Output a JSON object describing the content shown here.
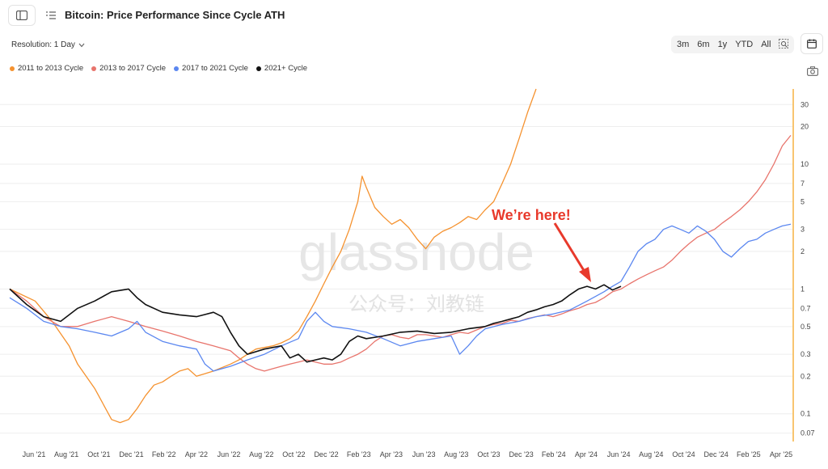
{
  "header": {
    "title": "Bitcoin: Price Performance Since Cycle ATH"
  },
  "toolbar": {
    "resolution_label": "Resolution: 1 Day",
    "ranges": [
      "3m",
      "6m",
      "1y",
      "YTD",
      "All"
    ]
  },
  "annotation": {
    "text": "We’re here!",
    "color": "#e8392b"
  },
  "watermark": {
    "logo": "glassnode",
    "subtitle": "公众号：刘教链"
  },
  "colors": {
    "cycle_2011": "#f5922f",
    "cycle_2013": "#e8746c",
    "cycle_2017": "#5b87f0",
    "cycle_2021": "#111111",
    "axis_accent": "#f5a623",
    "grid": "#eeeeee"
  },
  "chart_data": {
    "type": "line",
    "y_scale": "log",
    "ylim": [
      0.06,
      40
    ],
    "y_ticks": [
      30,
      20,
      10,
      7,
      5,
      3,
      2,
      1,
      0.7,
      0.5,
      0.3,
      0.2,
      0.1,
      0.07
    ],
    "x_ticks": [
      "Jun '21",
      "Aug '21",
      "Oct '21",
      "Dec '21",
      "Feb '22",
      "Apr '22",
      "Jun '22",
      "Aug '22",
      "Oct '22",
      "Dec '22",
      "Feb '23",
      "Apr '23",
      "Jun '23",
      "Aug '23",
      "Oct '23",
      "Dec '23",
      "Feb '24",
      "Apr '24",
      "Jun '24",
      "Aug '24",
      "Oct '24",
      "Dec '24",
      "Feb '25",
      "Apr '25"
    ],
    "legend_position": "top-left",
    "series": [
      {
        "name": "2011 to 2013 Cycle",
        "color_key": "cycle_2011",
        "points": [
          [
            0,
            1.0
          ],
          [
            3,
            0.8
          ],
          [
            5,
            0.55
          ],
          [
            7,
            0.35
          ],
          [
            8,
            0.25
          ],
          [
            9,
            0.2
          ],
          [
            10,
            0.16
          ],
          [
            11,
            0.12
          ],
          [
            12,
            0.09
          ],
          [
            13,
            0.085
          ],
          [
            14,
            0.09
          ],
          [
            15,
            0.11
          ],
          [
            16,
            0.14
          ],
          [
            17,
            0.17
          ],
          [
            18,
            0.18
          ],
          [
            19,
            0.2
          ],
          [
            20,
            0.22
          ],
          [
            21,
            0.23
          ],
          [
            22,
            0.2
          ],
          [
            24,
            0.22
          ],
          [
            26,
            0.25
          ],
          [
            27,
            0.27
          ],
          [
            28,
            0.3
          ],
          [
            29,
            0.33
          ],
          [
            30,
            0.34
          ],
          [
            31,
            0.35
          ],
          [
            32,
            0.37
          ],
          [
            33,
            0.4
          ],
          [
            34,
            0.46
          ],
          [
            35,
            0.6
          ],
          [
            36,
            0.8
          ],
          [
            37,
            1.1
          ],
          [
            38,
            1.5
          ],
          [
            39,
            2.0
          ],
          [
            40,
            3.0
          ],
          [
            41,
            5.0
          ],
          [
            41.5,
            8.0
          ],
          [
            42,
            6.5
          ],
          [
            43,
            4.5
          ],
          [
            44,
            3.8
          ],
          [
            45,
            3.3
          ],
          [
            46,
            3.6
          ],
          [
            47,
            3.1
          ],
          [
            48,
            2.5
          ],
          [
            49,
            2.1
          ],
          [
            50,
            2.6
          ],
          [
            51,
            2.9
          ],
          [
            52,
            3.1
          ],
          [
            53,
            3.4
          ],
          [
            54,
            3.8
          ],
          [
            55,
            3.6
          ],
          [
            56,
            4.3
          ],
          [
            57,
            5.0
          ],
          [
            58,
            7.0
          ],
          [
            59,
            10.0
          ],
          [
            60,
            16.0
          ],
          [
            61,
            26.0
          ],
          [
            62,
            40.0
          ]
        ]
      },
      {
        "name": "2013 to 2017 Cycle",
        "color_key": "cycle_2013",
        "points": [
          [
            0,
            1.0
          ],
          [
            2,
            0.8
          ],
          [
            4,
            0.6
          ],
          [
            6,
            0.5
          ],
          [
            8,
            0.5
          ],
          [
            10,
            0.55
          ],
          [
            12,
            0.6
          ],
          [
            14,
            0.55
          ],
          [
            16,
            0.5
          ],
          [
            18,
            0.46
          ],
          [
            20,
            0.42
          ],
          [
            22,
            0.38
          ],
          [
            24,
            0.35
          ],
          [
            26,
            0.32
          ],
          [
            27,
            0.28
          ],
          [
            28,
            0.25
          ],
          [
            29,
            0.23
          ],
          [
            30,
            0.22
          ],
          [
            31,
            0.23
          ],
          [
            32,
            0.24
          ],
          [
            33,
            0.25
          ],
          [
            34,
            0.26
          ],
          [
            35,
            0.27
          ],
          [
            36,
            0.26
          ],
          [
            37,
            0.25
          ],
          [
            38,
            0.25
          ],
          [
            39,
            0.26
          ],
          [
            40,
            0.28
          ],
          [
            41,
            0.3
          ],
          [
            42,
            0.33
          ],
          [
            43,
            0.38
          ],
          [
            44,
            0.42
          ],
          [
            45,
            0.43
          ],
          [
            46,
            0.41
          ],
          [
            47,
            0.4
          ],
          [
            48,
            0.43
          ],
          [
            49,
            0.43
          ],
          [
            50,
            0.42
          ],
          [
            51,
            0.41
          ],
          [
            52,
            0.43
          ],
          [
            53,
            0.45
          ],
          [
            54,
            0.44
          ],
          [
            55,
            0.47
          ],
          [
            56,
            0.5
          ],
          [
            57,
            0.52
          ],
          [
            58,
            0.53
          ],
          [
            59,
            0.56
          ],
          [
            60,
            0.55
          ],
          [
            61,
            0.58
          ],
          [
            62,
            0.6
          ],
          [
            63,
            0.62
          ],
          [
            64,
            0.6
          ],
          [
            65,
            0.63
          ],
          [
            66,
            0.67
          ],
          [
            67,
            0.7
          ],
          [
            68,
            0.75
          ],
          [
            69,
            0.78
          ],
          [
            70,
            0.85
          ],
          [
            71,
            0.95
          ],
          [
            72,
            1.0
          ],
          [
            73,
            1.1
          ],
          [
            74,
            1.2
          ],
          [
            75,
            1.3
          ],
          [
            76,
            1.4
          ],
          [
            77,
            1.5
          ],
          [
            78,
            1.7
          ],
          [
            79,
            2.0
          ],
          [
            80,
            2.3
          ],
          [
            81,
            2.6
          ],
          [
            82,
            2.8
          ],
          [
            83,
            3.0
          ],
          [
            84,
            3.4
          ],
          [
            85,
            3.8
          ],
          [
            86,
            4.3
          ],
          [
            87,
            5.0
          ],
          [
            88,
            6.0
          ],
          [
            89,
            7.5
          ],
          [
            90,
            10.0
          ],
          [
            91,
            14.0
          ],
          [
            92,
            17.0
          ]
        ]
      },
      {
        "name": "2017 to 2021 Cycle",
        "color_key": "cycle_2017",
        "points": [
          [
            0,
            0.85
          ],
          [
            2,
            0.7
          ],
          [
            4,
            0.55
          ],
          [
            6,
            0.5
          ],
          [
            8,
            0.48
          ],
          [
            10,
            0.45
          ],
          [
            12,
            0.42
          ],
          [
            14,
            0.48
          ],
          [
            15,
            0.55
          ],
          [
            16,
            0.45
          ],
          [
            18,
            0.38
          ],
          [
            20,
            0.35
          ],
          [
            22,
            0.33
          ],
          [
            23,
            0.25
          ],
          [
            24,
            0.22
          ],
          [
            26,
            0.24
          ],
          [
            28,
            0.27
          ],
          [
            30,
            0.3
          ],
          [
            32,
            0.35
          ],
          [
            34,
            0.4
          ],
          [
            35,
            0.55
          ],
          [
            36,
            0.65
          ],
          [
            37,
            0.55
          ],
          [
            38,
            0.5
          ],
          [
            40,
            0.48
          ],
          [
            42,
            0.45
          ],
          [
            44,
            0.4
          ],
          [
            46,
            0.35
          ],
          [
            48,
            0.38
          ],
          [
            50,
            0.4
          ],
          [
            52,
            0.42
          ],
          [
            53,
            0.3
          ],
          [
            54,
            0.35
          ],
          [
            55,
            0.42
          ],
          [
            56,
            0.48
          ],
          [
            58,
            0.52
          ],
          [
            60,
            0.55
          ],
          [
            62,
            0.6
          ],
          [
            64,
            0.63
          ],
          [
            66,
            0.68
          ],
          [
            68,
            0.8
          ],
          [
            70,
            0.95
          ],
          [
            71,
            1.05
          ],
          [
            72,
            1.15
          ],
          [
            73,
            1.5
          ],
          [
            74,
            2.0
          ],
          [
            75,
            2.3
          ],
          [
            76,
            2.5
          ],
          [
            77,
            3.0
          ],
          [
            78,
            3.2
          ],
          [
            79,
            3.0
          ],
          [
            80,
            2.8
          ],
          [
            81,
            3.2
          ],
          [
            82,
            2.9
          ],
          [
            83,
            2.5
          ],
          [
            84,
            2.0
          ],
          [
            85,
            1.8
          ],
          [
            86,
            2.1
          ],
          [
            87,
            2.4
          ],
          [
            88,
            2.5
          ],
          [
            89,
            2.8
          ],
          [
            90,
            3.0
          ],
          [
            91,
            3.2
          ],
          [
            92,
            3.3
          ]
        ]
      },
      {
        "name": "2021+ Cycle",
        "color_key": "cycle_2021",
        "points": [
          [
            0,
            1.0
          ],
          [
            2,
            0.75
          ],
          [
            4,
            0.6
          ],
          [
            6,
            0.55
          ],
          [
            8,
            0.7
          ],
          [
            10,
            0.8
          ],
          [
            12,
            0.95
          ],
          [
            14,
            1.0
          ],
          [
            15,
            0.85
          ],
          [
            16,
            0.75
          ],
          [
            18,
            0.65
          ],
          [
            20,
            0.62
          ],
          [
            22,
            0.6
          ],
          [
            24,
            0.65
          ],
          [
            25,
            0.6
          ],
          [
            26,
            0.45
          ],
          [
            27,
            0.35
          ],
          [
            28,
            0.3
          ],
          [
            30,
            0.33
          ],
          [
            32,
            0.35
          ],
          [
            33,
            0.28
          ],
          [
            34,
            0.3
          ],
          [
            35,
            0.26
          ],
          [
            36,
            0.27
          ],
          [
            37,
            0.28
          ],
          [
            38,
            0.27
          ],
          [
            39,
            0.3
          ],
          [
            40,
            0.38
          ],
          [
            41,
            0.42
          ],
          [
            42,
            0.4
          ],
          [
            44,
            0.42
          ],
          [
            46,
            0.45
          ],
          [
            48,
            0.46
          ],
          [
            50,
            0.44
          ],
          [
            52,
            0.45
          ],
          [
            54,
            0.48
          ],
          [
            56,
            0.5
          ],
          [
            57,
            0.53
          ],
          [
            58,
            0.55
          ],
          [
            60,
            0.6
          ],
          [
            61,
            0.65
          ],
          [
            62,
            0.68
          ],
          [
            63,
            0.72
          ],
          [
            64,
            0.75
          ],
          [
            65,
            0.8
          ],
          [
            66,
            0.9
          ],
          [
            67,
            1.0
          ],
          [
            68,
            1.05
          ],
          [
            69,
            1.0
          ],
          [
            70,
            1.08
          ],
          [
            71,
            0.98
          ],
          [
            72,
            1.05
          ]
        ]
      }
    ]
  }
}
